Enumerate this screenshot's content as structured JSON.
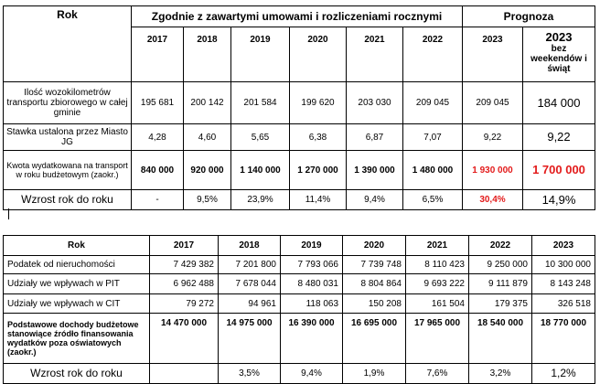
{
  "table1": {
    "header": {
      "rok": "Rok",
      "group_contracts": "Zgodnie z zawartymi umowami i rozliczeniami rocznymi",
      "group_forecast": "Prognoza"
    },
    "years": [
      "2017",
      "2018",
      "2019",
      "2020",
      "2021",
      "2022",
      "2023"
    ],
    "year_special_line1": "2023",
    "year_special_line2": "bez weekendów i świąt",
    "rows": [
      {
        "label": "Ilość wozokilometrów transportu zbiorowego w całej gminie",
        "values": [
          "195 681",
          "200 142",
          "201 584",
          "199 620",
          "203 030",
          "209 045",
          "209 045"
        ],
        "last": "184 000"
      },
      {
        "label": "Stawka ustalona przez Miasto JG",
        "values": [
          "4,28",
          "4,60",
          "5,65",
          "6,38",
          "6,87",
          "7,07",
          "9,22"
        ],
        "last": "9,22"
      },
      {
        "label": "Kwota wydatkowana na transport w roku budżetowym (zaokr.)",
        "values": [
          "840 000",
          "920 000",
          "1 140 000",
          "1 270 000",
          "1 390 000",
          "1 480 000",
          "1 930 000"
        ],
        "last": "1 700 000"
      },
      {
        "label": "Wzrost rok do roku",
        "values": [
          "-",
          "9,5%",
          "23,9%",
          "11,4%",
          "9,4%",
          "6,5%",
          "30,4%"
        ],
        "last": "14,9%"
      }
    ]
  },
  "table2": {
    "header": {
      "rok": "Rok",
      "years": [
        "2017",
        "2018",
        "2019",
        "2020",
        "2021",
        "2022",
        "2023"
      ]
    },
    "rows": [
      {
        "label": "Podatek od nieruchomości",
        "values": [
          "7 429 382",
          "7 201 800",
          "7 793 066",
          "7 739 748",
          "8 110 423",
          "9 250 000",
          "10 300 000"
        ]
      },
      {
        "label": "Udziały we wpływach w PIT",
        "values": [
          "6 962 488",
          "7 678 044",
          "8 480 031",
          "8 804 864",
          "9 693 222",
          "9 111 879",
          "8 143 248"
        ]
      },
      {
        "label": "Udziały we wpływach w CIT",
        "values": [
          "79 272",
          "94 961",
          "118 063",
          "150 208",
          "161 504",
          "179 375",
          "326 518"
        ]
      },
      {
        "label": "Podstawowe dochody budżetowe stanowiące źródło finansowania wydatków poza oświatowych (zaokr.)",
        "values": [
          "14 470 000",
          "14 975 000",
          "16 390 000",
          "16 695 000",
          "17 965 000",
          "18 540 000",
          "18 770 000"
        ]
      },
      {
        "label": "Wzrost rok do roku",
        "values": [
          "",
          "3,5%",
          "9,4%",
          "1,9%",
          "7,6%",
          "3,2%",
          "1,2%"
        ]
      }
    ]
  }
}
